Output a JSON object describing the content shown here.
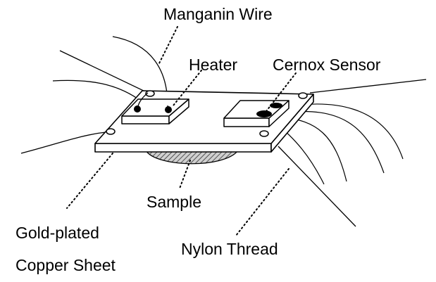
{
  "labels": {
    "manganin_wire": "Manganin Wire",
    "heater": "Heater",
    "cernox_sensor": "Cernox Sensor",
    "sample": "Sample",
    "gold_plated_line1": "Gold-plated",
    "gold_plated_line2": "Copper Sheet",
    "nylon_thread": "Nylon Thread"
  },
  "colors": {
    "ink": "#000000",
    "paper": "#ffffff",
    "sample_fill": "#a9a9a9"
  }
}
